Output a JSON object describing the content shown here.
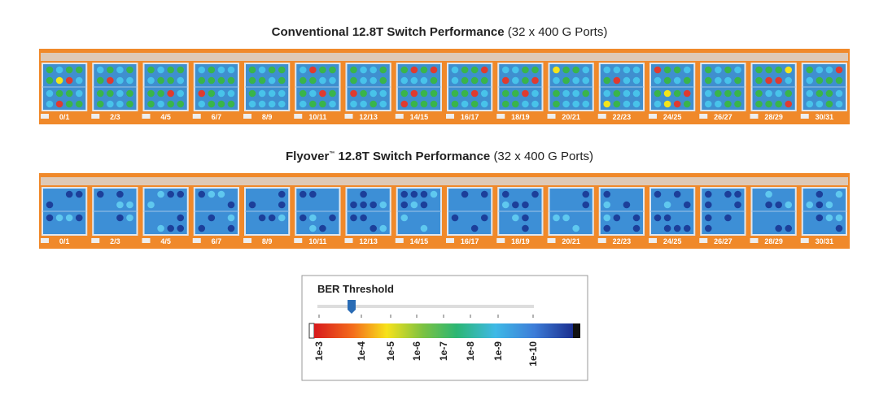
{
  "panels": [
    {
      "title": "Conventional 12.8T Switch Performance",
      "subtitle": "(32 x 400 G Ports)"
    },
    {
      "title": "Flyover",
      "title_mark": "™",
      "title_rest": " 12.8T Switch Performance",
      "subtitle": "(32 x 400 G Ports)"
    }
  ],
  "ports": [
    "0/1",
    "2/3",
    "4/5",
    "6/7",
    "8/9",
    "10/11",
    "12/13",
    "14/15",
    "16/17",
    "18/19",
    "20/21",
    "22/23",
    "24/25",
    "26/27",
    "28/29",
    "30/31"
  ],
  "legend": {
    "title": "BER Threshold",
    "labels": [
      "1e-3",
      "1e-4",
      "1e-5",
      "1e-6",
      "1e-7",
      "1e-8",
      "1e-9",
      "1e-10"
    ]
  }
}
